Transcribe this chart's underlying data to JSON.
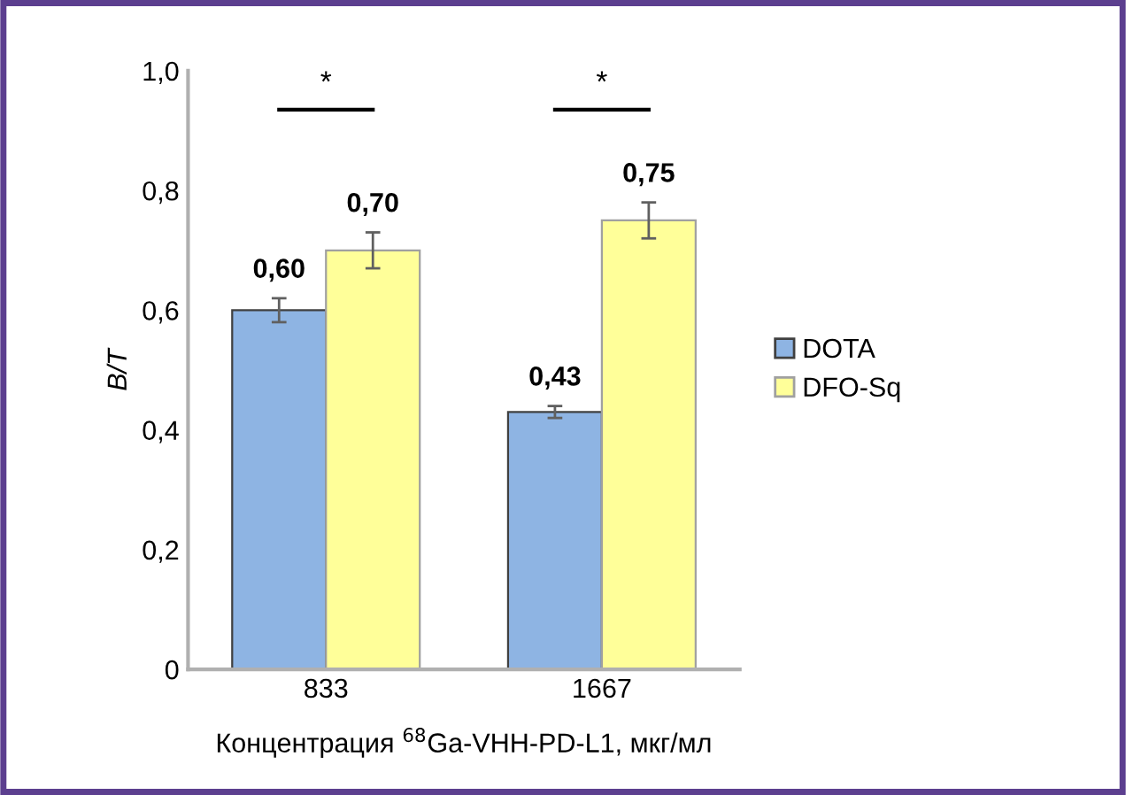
{
  "chart_data": {
    "type": "bar",
    "xlabel": "Концентрация $^{68}$Ga-VHH-PD-L1, мкг/мл",
    "ylabel": "B/T",
    "categories": [
      "833",
      "1667"
    ],
    "series": [
      {
        "name": "DOTA",
        "color": "#8eb4e3",
        "values": [
          0.6,
          0.43
        ],
        "errors": [
          0.02,
          0.01
        ],
        "value_labels": [
          "0,60",
          "0,43"
        ]
      },
      {
        "name": "DFO-Sq",
        "color": "#ffff99",
        "values": [
          0.7,
          0.75
        ],
        "errors": [
          0.03,
          0.03
        ],
        "value_labels": [
          "0,70",
          "0,75"
        ]
      }
    ],
    "ylim": [
      0,
      1.0
    ],
    "yticks": [
      0,
      {
        "value": 0.2,
        "label": "0,2"
      },
      {
        "value": 0.4,
        "label": "0,4"
      },
      {
        "value": 0.6,
        "label": "0,6"
      },
      {
        "value": 0.8,
        "label": "0,8"
      },
      {
        "value": 1.0,
        "label": "1,0"
      }
    ],
    "annotations": [
      "*",
      "*"
    ],
    "legend": "right",
    "grid": false
  }
}
